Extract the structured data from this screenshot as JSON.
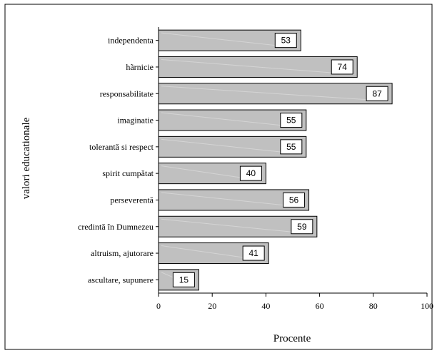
{
  "chart_data": {
    "type": "bar",
    "orientation": "horizontal",
    "categories": [
      "independenta",
      "hãrnicie",
      "responsabilitate",
      "imaginatie",
      "tolerantă si respect",
      "spirit cumpătat",
      "perseverentă",
      "credintă în Dumnezeu",
      "altruism, ajutorare",
      "ascultare, supunere"
    ],
    "values": [
      53,
      74,
      87,
      55,
      55,
      40,
      56,
      59,
      41,
      15
    ],
    "xlabel": "Procente",
    "ylabel": "valori educationale",
    "xlim": [
      0,
      100
    ],
    "xticks": [
      0,
      20,
      40,
      60,
      80,
      100
    ],
    "grid": false,
    "legend": "none",
    "bar_color": "#c0c0c0",
    "border_color": "#000000"
  }
}
